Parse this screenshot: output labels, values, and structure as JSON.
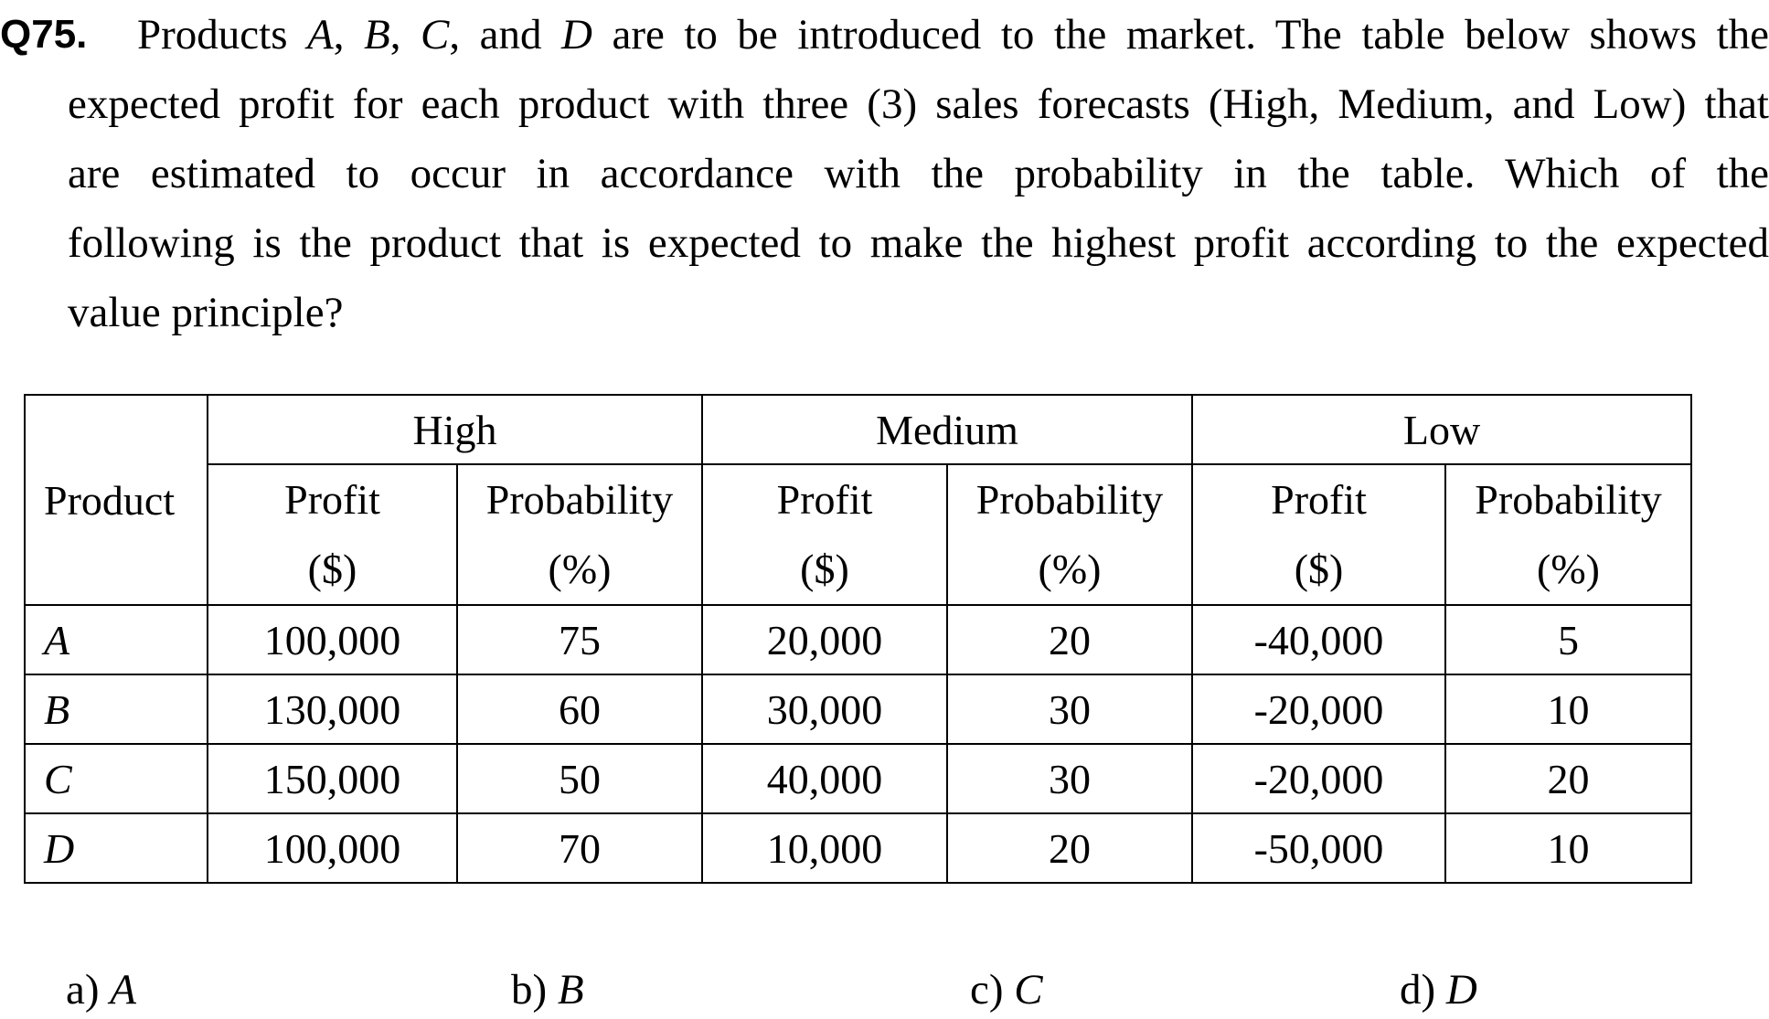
{
  "question": {
    "number": "Q75.",
    "lines": [
      [
        {
          "t": "Products ",
          "i": false
        },
        {
          "t": "A",
          "i": true
        },
        {
          "t": ", ",
          "i": false
        },
        {
          "t": "B",
          "i": true
        },
        {
          "t": ", ",
          "i": false
        },
        {
          "t": "C",
          "i": true
        },
        {
          "t": ", and ",
          "i": false
        },
        {
          "t": "D",
          "i": true
        },
        {
          "t": " are to be introduced to the market. The table below shows the",
          "i": false
        }
      ],
      [
        {
          "t": "expected profit for each product with three (3) sales forecasts (High, Medium, and Low) that",
          "i": false
        }
      ],
      [
        {
          "t": "are estimated to occur in accordance with the probability in the table. Which of the",
          "i": false
        }
      ],
      [
        {
          "t": "following is the product that is expected to make the highest profit according to the expected",
          "i": false
        }
      ],
      [
        {
          "t": "value principle?",
          "i": false
        }
      ]
    ]
  },
  "table": {
    "product_header": "Product",
    "groups": [
      "High",
      "Medium",
      "Low"
    ],
    "profit_label": [
      "Profit",
      "($)"
    ],
    "prob_label": [
      "Probability",
      "(%)"
    ],
    "rows": [
      {
        "product": "A",
        "cells": [
          "100,000",
          "75",
          "20,000",
          "20",
          "-40,000",
          "5"
        ]
      },
      {
        "product": "B",
        "cells": [
          "130,000",
          "60",
          "30,000",
          "30",
          "-20,000",
          "10"
        ]
      },
      {
        "product": "C",
        "cells": [
          "150,000",
          "50",
          "40,000",
          "30",
          "-20,000",
          "20"
        ]
      },
      {
        "product": "D",
        "cells": [
          "100,000",
          "70",
          "10,000",
          "20",
          "-50,000",
          "10"
        ]
      }
    ]
  },
  "answers": [
    {
      "prefix": "a) ",
      "letter": "A"
    },
    {
      "prefix": "b) ",
      "letter": "B"
    },
    {
      "prefix": "c) ",
      "letter": "C"
    },
    {
      "prefix": "d) ",
      "letter": "D"
    }
  ]
}
